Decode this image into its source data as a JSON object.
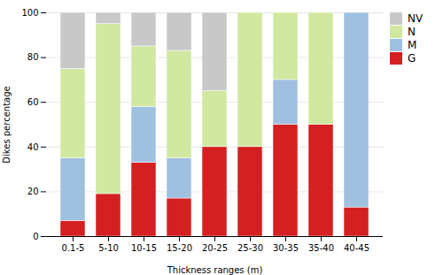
{
  "chart_data": {
    "type": "bar",
    "stacked": true,
    "categories": [
      "0.1-5",
      "5-10",
      "10-15",
      "15-20",
      "20-25",
      "25-30",
      "30-35",
      "35-40",
      "40-45"
    ],
    "series": [
      {
        "name": "G",
        "color": "#d42020",
        "values": [
          7,
          19,
          33,
          17,
          40,
          40,
          50,
          50,
          13
        ]
      },
      {
        "name": "M",
        "color": "#a0c0e0",
        "values": [
          28,
          0,
          25,
          18,
          0,
          0,
          20,
          0,
          87
        ]
      },
      {
        "name": "N",
        "color": "#d0e8a0",
        "values": [
          40,
          76,
          27,
          48,
          25,
          60,
          30,
          50,
          0
        ]
      },
      {
        "name": "NV",
        "color": "#c8c8c8",
        "values": [
          25,
          5,
          15,
          17,
          35,
          0,
          0,
          0,
          0
        ]
      }
    ],
    "xlabel": "Thickness ranges (m)",
    "ylabel": "Dikes percentage",
    "ylim": [
      0,
      100
    ],
    "yticks": [
      0,
      20,
      40,
      60,
      80,
      100
    ],
    "grid": true,
    "legend": "right"
  }
}
